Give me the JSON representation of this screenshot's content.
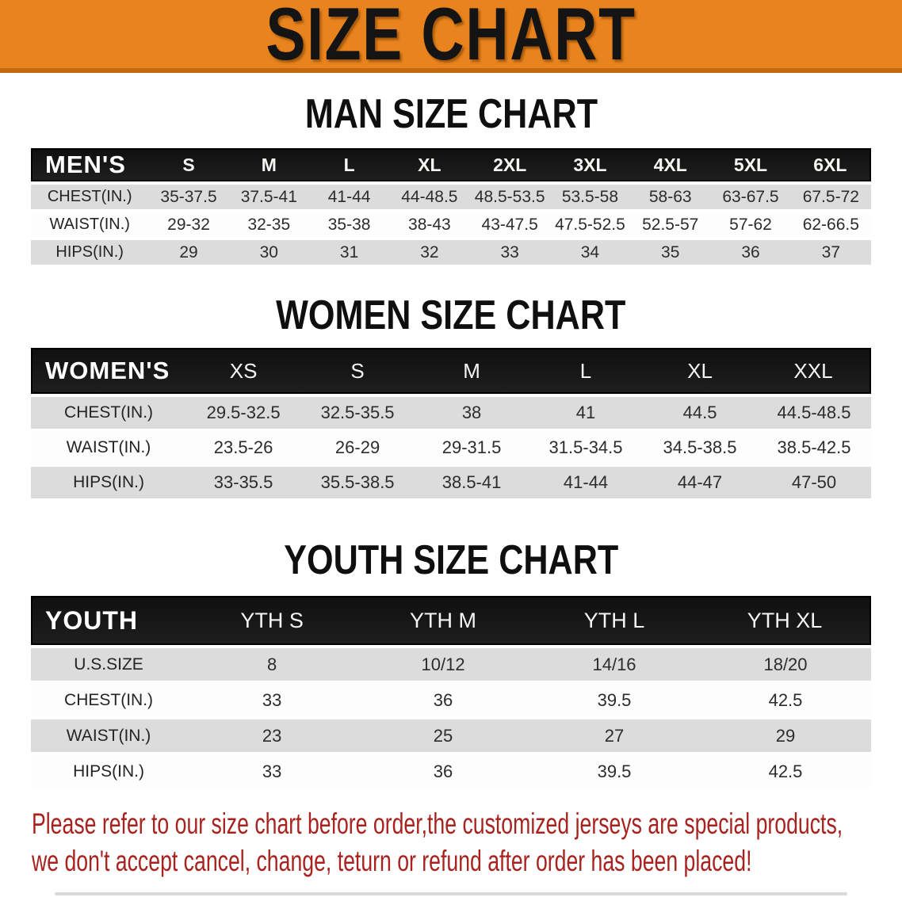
{
  "banner": {
    "title": "SIZE CHART",
    "bg_color": "#E8831D",
    "border_color": "#C2690E",
    "text_color": "#141414"
  },
  "colors": {
    "header_bar": "#161616",
    "row_gray": "#DCDCDD",
    "row_white": "#FDFDFD",
    "notice_red": "#A8231F"
  },
  "sections": [
    {
      "heading": "MAN SIZE CHART",
      "table": {
        "label": "MEN'S",
        "columns": [
          "S",
          "M",
          "L",
          "XL",
          "2XL",
          "3XL",
          "4XL",
          "5XL",
          "6XL"
        ],
        "rows": [
          {
            "label": "CHEST(IN.)",
            "values": [
              "35-37.5",
              "37.5-41",
              "41-44",
              "44-48.5",
              "48.5-53.5",
              "53.5-58",
              "58-63",
              "63-67.5",
              "67.5-72"
            ]
          },
          {
            "label": "WAIST(IN.)",
            "values": [
              "29-32",
              "32-35",
              "35-38",
              "38-43",
              "43-47.5",
              "47.5-52.5",
              "52.5-57",
              "57-62",
              "62-66.5"
            ]
          },
          {
            "label": "HIPS(IN.)",
            "values": [
              "29",
              "30",
              "31",
              "32",
              "33",
              "34",
              "35",
              "36",
              "37"
            ]
          }
        ]
      }
    },
    {
      "heading": "WOMEN SIZE CHART",
      "table": {
        "label": "WOMEN'S",
        "columns": [
          "XS",
          "S",
          "M",
          "L",
          "XL",
          "XXL"
        ],
        "rows": [
          {
            "label": "CHEST(IN.)",
            "values": [
              "29.5-32.5",
              "32.5-35.5",
              "38",
              "41",
              "44.5",
              "44.5-48.5"
            ]
          },
          {
            "label": "WAIST(IN.)",
            "values": [
              "23.5-26",
              "26-29",
              "29-31.5",
              "31.5-34.5",
              "34.5-38.5",
              "38.5-42.5"
            ]
          },
          {
            "label": "HIPS(IN.)",
            "values": [
              "33-35.5",
              "35.5-38.5",
              "38.5-41",
              "41-44",
              "44-47",
              "47-50"
            ]
          }
        ]
      }
    },
    {
      "heading": "YOUTH SIZE CHART",
      "table": {
        "label": "YOUTH",
        "columns": [
          "YTH S",
          "YTH M",
          "YTH L",
          "YTH XL"
        ],
        "rows": [
          {
            "label": "U.S.SIZE",
            "values": [
              "8",
              "10/12",
              "14/16",
              "18/20"
            ]
          },
          {
            "label": "CHEST(IN.)",
            "values": [
              "33",
              "36",
              "39.5",
              "42.5"
            ]
          },
          {
            "label": "WAIST(IN.)",
            "values": [
              "23",
              "25",
              "27",
              "29"
            ]
          },
          {
            "label": "HIPS(IN.)",
            "values": [
              "33",
              "36",
              "39.5",
              "42.5"
            ]
          }
        ]
      }
    }
  ],
  "notice": {
    "line1": "Please refer to our size chart before order,the customized jerseys are special products,",
    "line2": "we don't accept cancel, change, teturn or refund after order has been placed!"
  }
}
